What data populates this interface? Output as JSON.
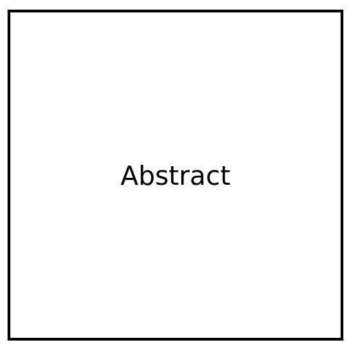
{
  "box": {
    "label": "Abstract",
    "border_color": "#000000",
    "background_color": "#ffffff",
    "text_color": "#000000"
  }
}
